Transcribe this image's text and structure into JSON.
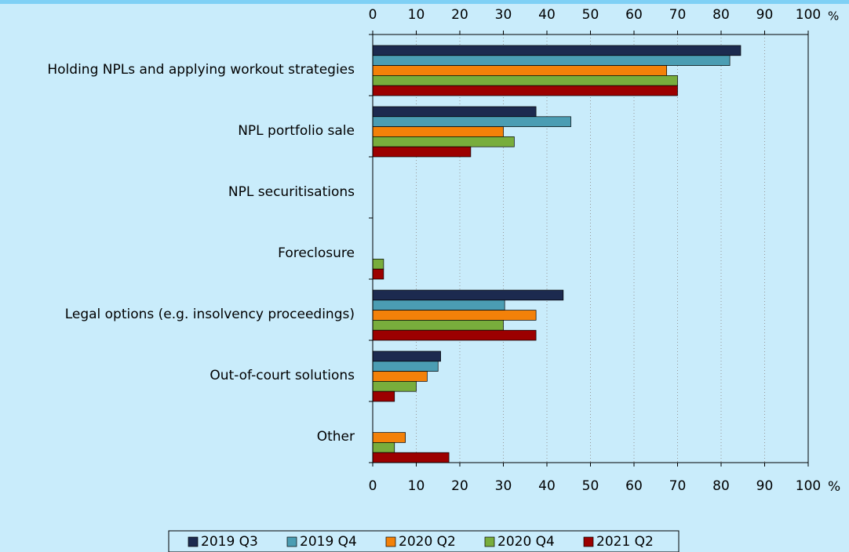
{
  "chart_data": {
    "type": "bar",
    "orientation": "horizontal",
    "categories": [
      "Holding NPLs and applying workout strategies",
      "NPL portfolio sale",
      "NPL securitisations",
      "Foreclosure",
      "Legal options (e.g. insolvency proceedings)",
      "Out-of-court solutions",
      "Other"
    ],
    "series": [
      {
        "name": "2019 Q3",
        "color": "#1c2a4f",
        "values": [
          84.5,
          37.5,
          0,
          0,
          43.75,
          15.6,
          0
        ]
      },
      {
        "name": "2019 Q4",
        "color": "#4b9db3",
        "values": [
          82,
          45.5,
          0,
          0,
          30.3,
          15,
          0
        ]
      },
      {
        "name": "2020 Q2",
        "color": "#f38109",
        "values": [
          67.5,
          30,
          0,
          0,
          37.5,
          12.5,
          7.5
        ]
      },
      {
        "name": "2020 Q4",
        "color": "#78ad3c",
        "values": [
          70,
          32.5,
          0,
          2.5,
          30,
          10,
          5
        ]
      },
      {
        "name": "2021 Q2",
        "color": "#9c0000",
        "values": [
          70,
          22.5,
          0,
          2.5,
          37.5,
          5,
          17.5
        ]
      }
    ],
    "xlim": [
      0,
      100
    ],
    "xticks": [
      0,
      10,
      20,
      30,
      40,
      50,
      60,
      70,
      80,
      90,
      100
    ],
    "unit": "%",
    "grid": true,
    "legend": "bottom"
  }
}
